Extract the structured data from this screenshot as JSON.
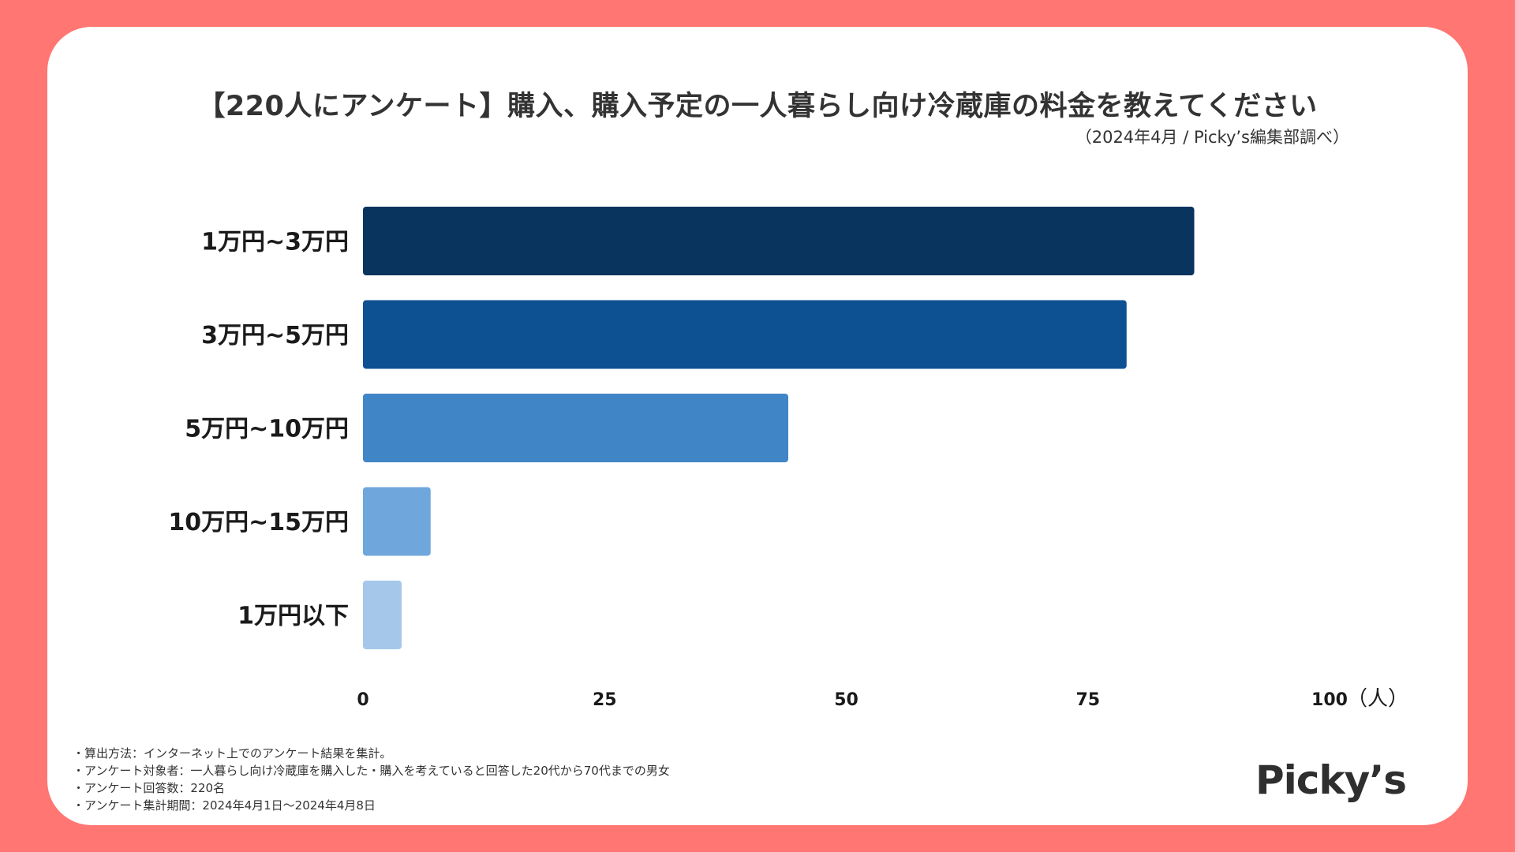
{
  "title": "【220人にアンケート】購入、購入予定の一人暮らし向け冷蔵庫の料金を教えてください",
  "source": "（2024年4月 / Picky’s編集部調べ）",
  "notes": [
    "・算出方法：インターネット上でのアンケート結果を集計。",
    "・アンケート対象者：一人暮らし向け冷蔵庫を購入した・購入を考えていると回答した20代から70代までの男女",
    "・アンケート回答数：220名",
    "・アンケート集計期間：2024年4月1日〜2024年4月8日"
  ],
  "logo": "Picky’s",
  "colors": {
    "background": "#FF7672",
    "card": "#FFFFFF",
    "text": "#333333"
  },
  "chart_data": {
    "type": "bar",
    "orientation": "horizontal",
    "title": "【220人にアンケート】購入、購入予定の一人暮らし向け冷蔵庫の料金を教えてください",
    "categories": [
      "1万円~3万円",
      "3万円~5万円",
      "5万円~10万円",
      "10万円~15万円",
      "1万円以下"
    ],
    "values": [
      86,
      79,
      44,
      7,
      4
    ],
    "bar_colors": [
      "#08345E",
      "#0D5193",
      "#4085C6",
      "#6FA7DC",
      "#A4C7EA"
    ],
    "xlim": [
      0,
      100
    ],
    "xticks": [
      "0",
      "25",
      "50",
      "75",
      "100"
    ],
    "xunit": "（人）",
    "xlabel": "",
    "ylabel": "",
    "grid": false,
    "legend": "none"
  }
}
